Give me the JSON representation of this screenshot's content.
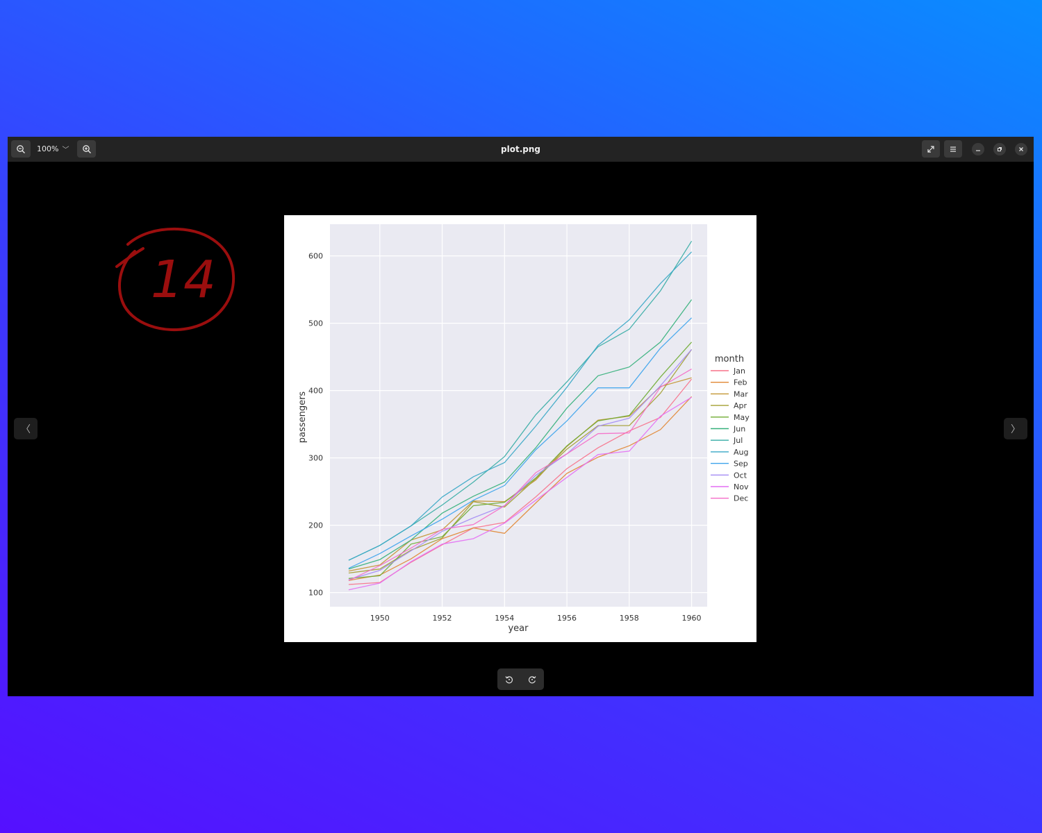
{
  "window": {
    "title": "plot.png",
    "zoom_level": "100%"
  },
  "icons": {
    "zoom_out": "zoom-out-icon",
    "zoom_in": "zoom-in-icon",
    "fullscreen": "fullscreen-icon",
    "menu": "hamburger-menu-icon",
    "minimize": "minimize-icon",
    "maximize": "maximize-icon",
    "close": "close-icon",
    "prev": "chevron-left-icon",
    "next": "chevron-right-icon",
    "rotate_left": "rotate-left-icon",
    "rotate_right": "rotate-right-icon"
  },
  "annotation": {
    "text": "14",
    "color": "#9a0e0e"
  },
  "chart_data": {
    "type": "line",
    "title": "",
    "xlabel": "year",
    "ylabel": "passengers",
    "xlim": [
      1948.4,
      1960.5
    ],
    "ylim": [
      79,
      647
    ],
    "xticks": [
      1950,
      1952,
      1954,
      1956,
      1958,
      1960
    ],
    "yticks": [
      100,
      200,
      300,
      400,
      500,
      600
    ],
    "grid": true,
    "legend": {
      "title": "month",
      "placement": "outside-right"
    },
    "x": [
      1949,
      1950,
      1951,
      1952,
      1953,
      1954,
      1955,
      1956,
      1957,
      1958,
      1959,
      1960
    ],
    "series": [
      {
        "name": "Jan",
        "color": "#f77189",
        "values": [
          112,
          115,
          145,
          171,
          196,
          204,
          242,
          284,
          315,
          340,
          360,
          417
        ]
      },
      {
        "name": "Feb",
        "color": "#e18632",
        "values": [
          118,
          126,
          150,
          180,
          196,
          188,
          233,
          277,
          301,
          318,
          342,
          391
        ]
      },
      {
        "name": "Mar",
        "color": "#c39532",
        "values": [
          132,
          141,
          178,
          193,
          236,
          235,
          267,
          317,
          356,
          362,
          406,
          419
        ]
      },
      {
        "name": "Apr",
        "color": "#a39f31",
        "values": [
          129,
          135,
          163,
          181,
          235,
          227,
          269,
          313,
          348,
          348,
          396,
          461
        ]
      },
      {
        "name": "May",
        "color": "#6eab31",
        "values": [
          121,
          125,
          172,
          183,
          229,
          234,
          270,
          318,
          355,
          363,
          420,
          472
        ]
      },
      {
        "name": "Jun",
        "color": "#33b07a",
        "values": [
          135,
          149,
          178,
          218,
          243,
          264,
          315,
          374,
          422,
          435,
          472,
          535
        ]
      },
      {
        "name": "Jul",
        "color": "#35aca4",
        "values": [
          148,
          170,
          199,
          230,
          264,
          302,
          364,
          413,
          465,
          491,
          548,
          622
        ]
      },
      {
        "name": "Aug",
        "color": "#37a7c5",
        "values": [
          148,
          170,
          199,
          242,
          272,
          293,
          347,
          405,
          467,
          505,
          559,
          606
        ]
      },
      {
        "name": "Sep",
        "color": "#3ba3ec",
        "values": [
          136,
          158,
          184,
          209,
          237,
          259,
          312,
          355,
          404,
          404,
          463,
          508
        ]
      },
      {
        "name": "Oct",
        "color": "#a48cf4",
        "values": [
          119,
          133,
          162,
          191,
          211,
          229,
          274,
          306,
          347,
          359,
          407,
          461
        ]
      },
      {
        "name": "Nov",
        "color": "#e46ef4",
        "values": [
          104,
          114,
          146,
          172,
          180,
          203,
          237,
          271,
          305,
          310,
          362,
          390
        ]
      },
      {
        "name": "Dec",
        "color": "#f56cc8",
        "values": [
          118,
          140,
          166,
          194,
          201,
          229,
          278,
          306,
          336,
          337,
          405,
          432
        ]
      }
    ]
  }
}
